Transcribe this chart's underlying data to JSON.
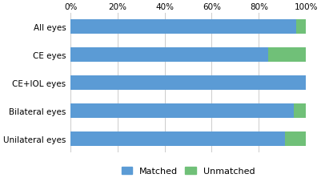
{
  "categories": [
    "All eyes",
    "CE eyes",
    "CE+IOL eyes",
    "Bilateral eyes",
    "Unilateral eyes"
  ],
  "matched": [
    96,
    84,
    100,
    95,
    91
  ],
  "unmatched": [
    4,
    16,
    0,
    5,
    9
  ],
  "color_matched": "#5B9BD5",
  "color_unmatched": "#70C078",
  "legend_matched": "Matched",
  "legend_unmatched": "Unmatched",
  "xticks": [
    0,
    20,
    40,
    60,
    80,
    100
  ],
  "xtick_labels": [
    "0%",
    "20%",
    "40%",
    "60%",
    "80%",
    "100%"
  ],
  "bar_height": 0.52,
  "background_color": "#ffffff",
  "grid_color": "#cccccc",
  "label_fontsize": 7.5,
  "tick_fontsize": 7.5,
  "legend_fontsize": 8
}
